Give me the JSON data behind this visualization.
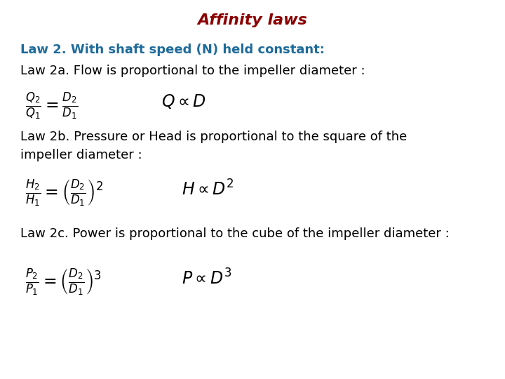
{
  "title": "Affinity laws",
  "title_color": "#8B0000",
  "title_fontsize": 16,
  "bg_color": "#ffffff",
  "law2_header": "Law 2. With shaft speed (N) held constant:",
  "law2_header_color": "#1E6B9B",
  "law2a_text": "Law 2a. Flow is proportional to the impeller diameter :",
  "law2a_text_color": "#000000",
  "law2a_formula1": "$\\frac{Q_2}{Q_1} = \\frac{D_2}{D_1}$",
  "law2a_formula2": "$Q \\propto D$",
  "law2b_text1": "Law 2b. Pressure or Head is proportional to the square of the",
  "law2b_text2": "impeller diameter :",
  "law2b_text_color": "#000000",
  "law2b_formula1": "$\\frac{H_2}{H_1} = \\left(\\frac{D_2}{D_1}\\right)^2$",
  "law2b_formula2": "$H \\propto D^2$",
  "law2c_text": "Law 2c. Power is proportional to the cube of the impeller diameter :",
  "law2c_text_color": "#000000",
  "law2c_formula1": "$\\frac{P_2}{P_1} = \\left(\\frac{D_2}{D_1}\\right)^3$",
  "law2c_formula2": "$P \\propto D^3$",
  "text_fontsize": 13,
  "formula_fontsize": 17
}
